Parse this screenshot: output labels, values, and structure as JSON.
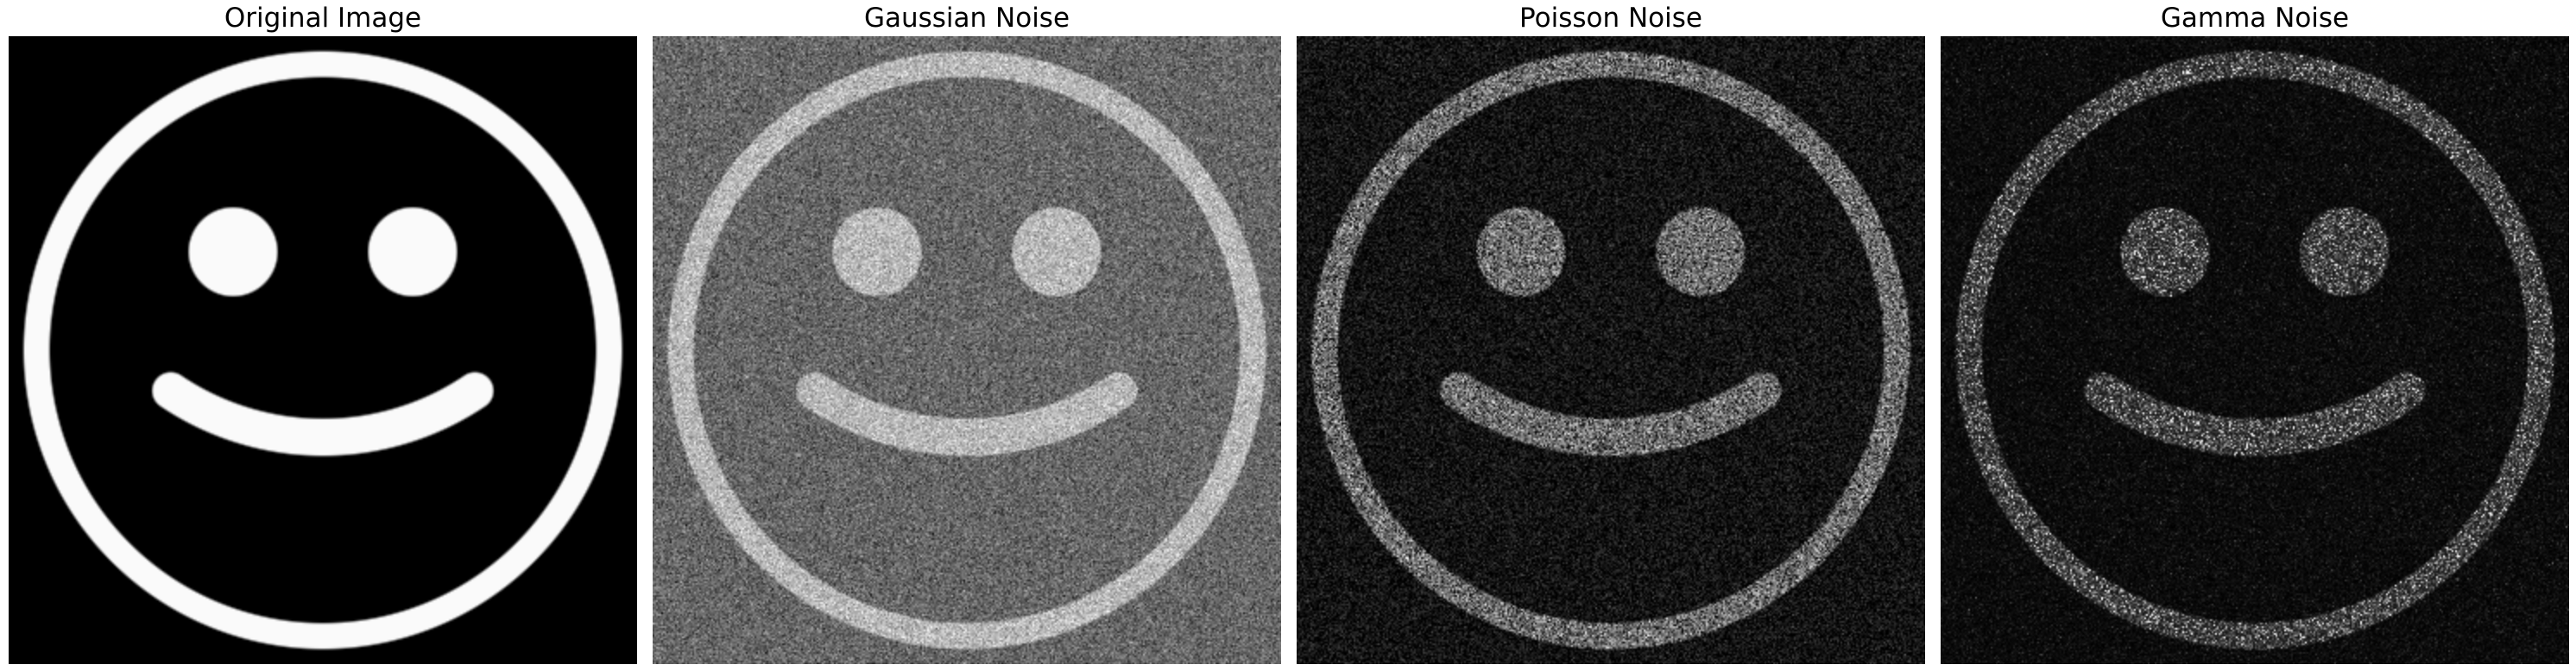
{
  "figure": {
    "panels": [
      {
        "title": "Original Image",
        "noise": "none",
        "background_level": 0.0,
        "face_level": 0.98,
        "noise_strength": 0.0,
        "seed": 11
      },
      {
        "title": "Gaussian Noise",
        "noise": "gaussian",
        "background_level": 0.4,
        "face_level": 0.72,
        "noise_strength": 0.1,
        "seed": 23
      },
      {
        "title": "Poisson Noise",
        "noise": "poisson",
        "background_level": 0.07,
        "face_level": 0.42,
        "noise_strength": 0.55,
        "seed": 37
      },
      {
        "title": "Gamma Noise",
        "noise": "gamma",
        "background_level": 0.05,
        "face_level": 0.3,
        "noise_strength": 0.8,
        "seed": 53
      }
    ]
  }
}
